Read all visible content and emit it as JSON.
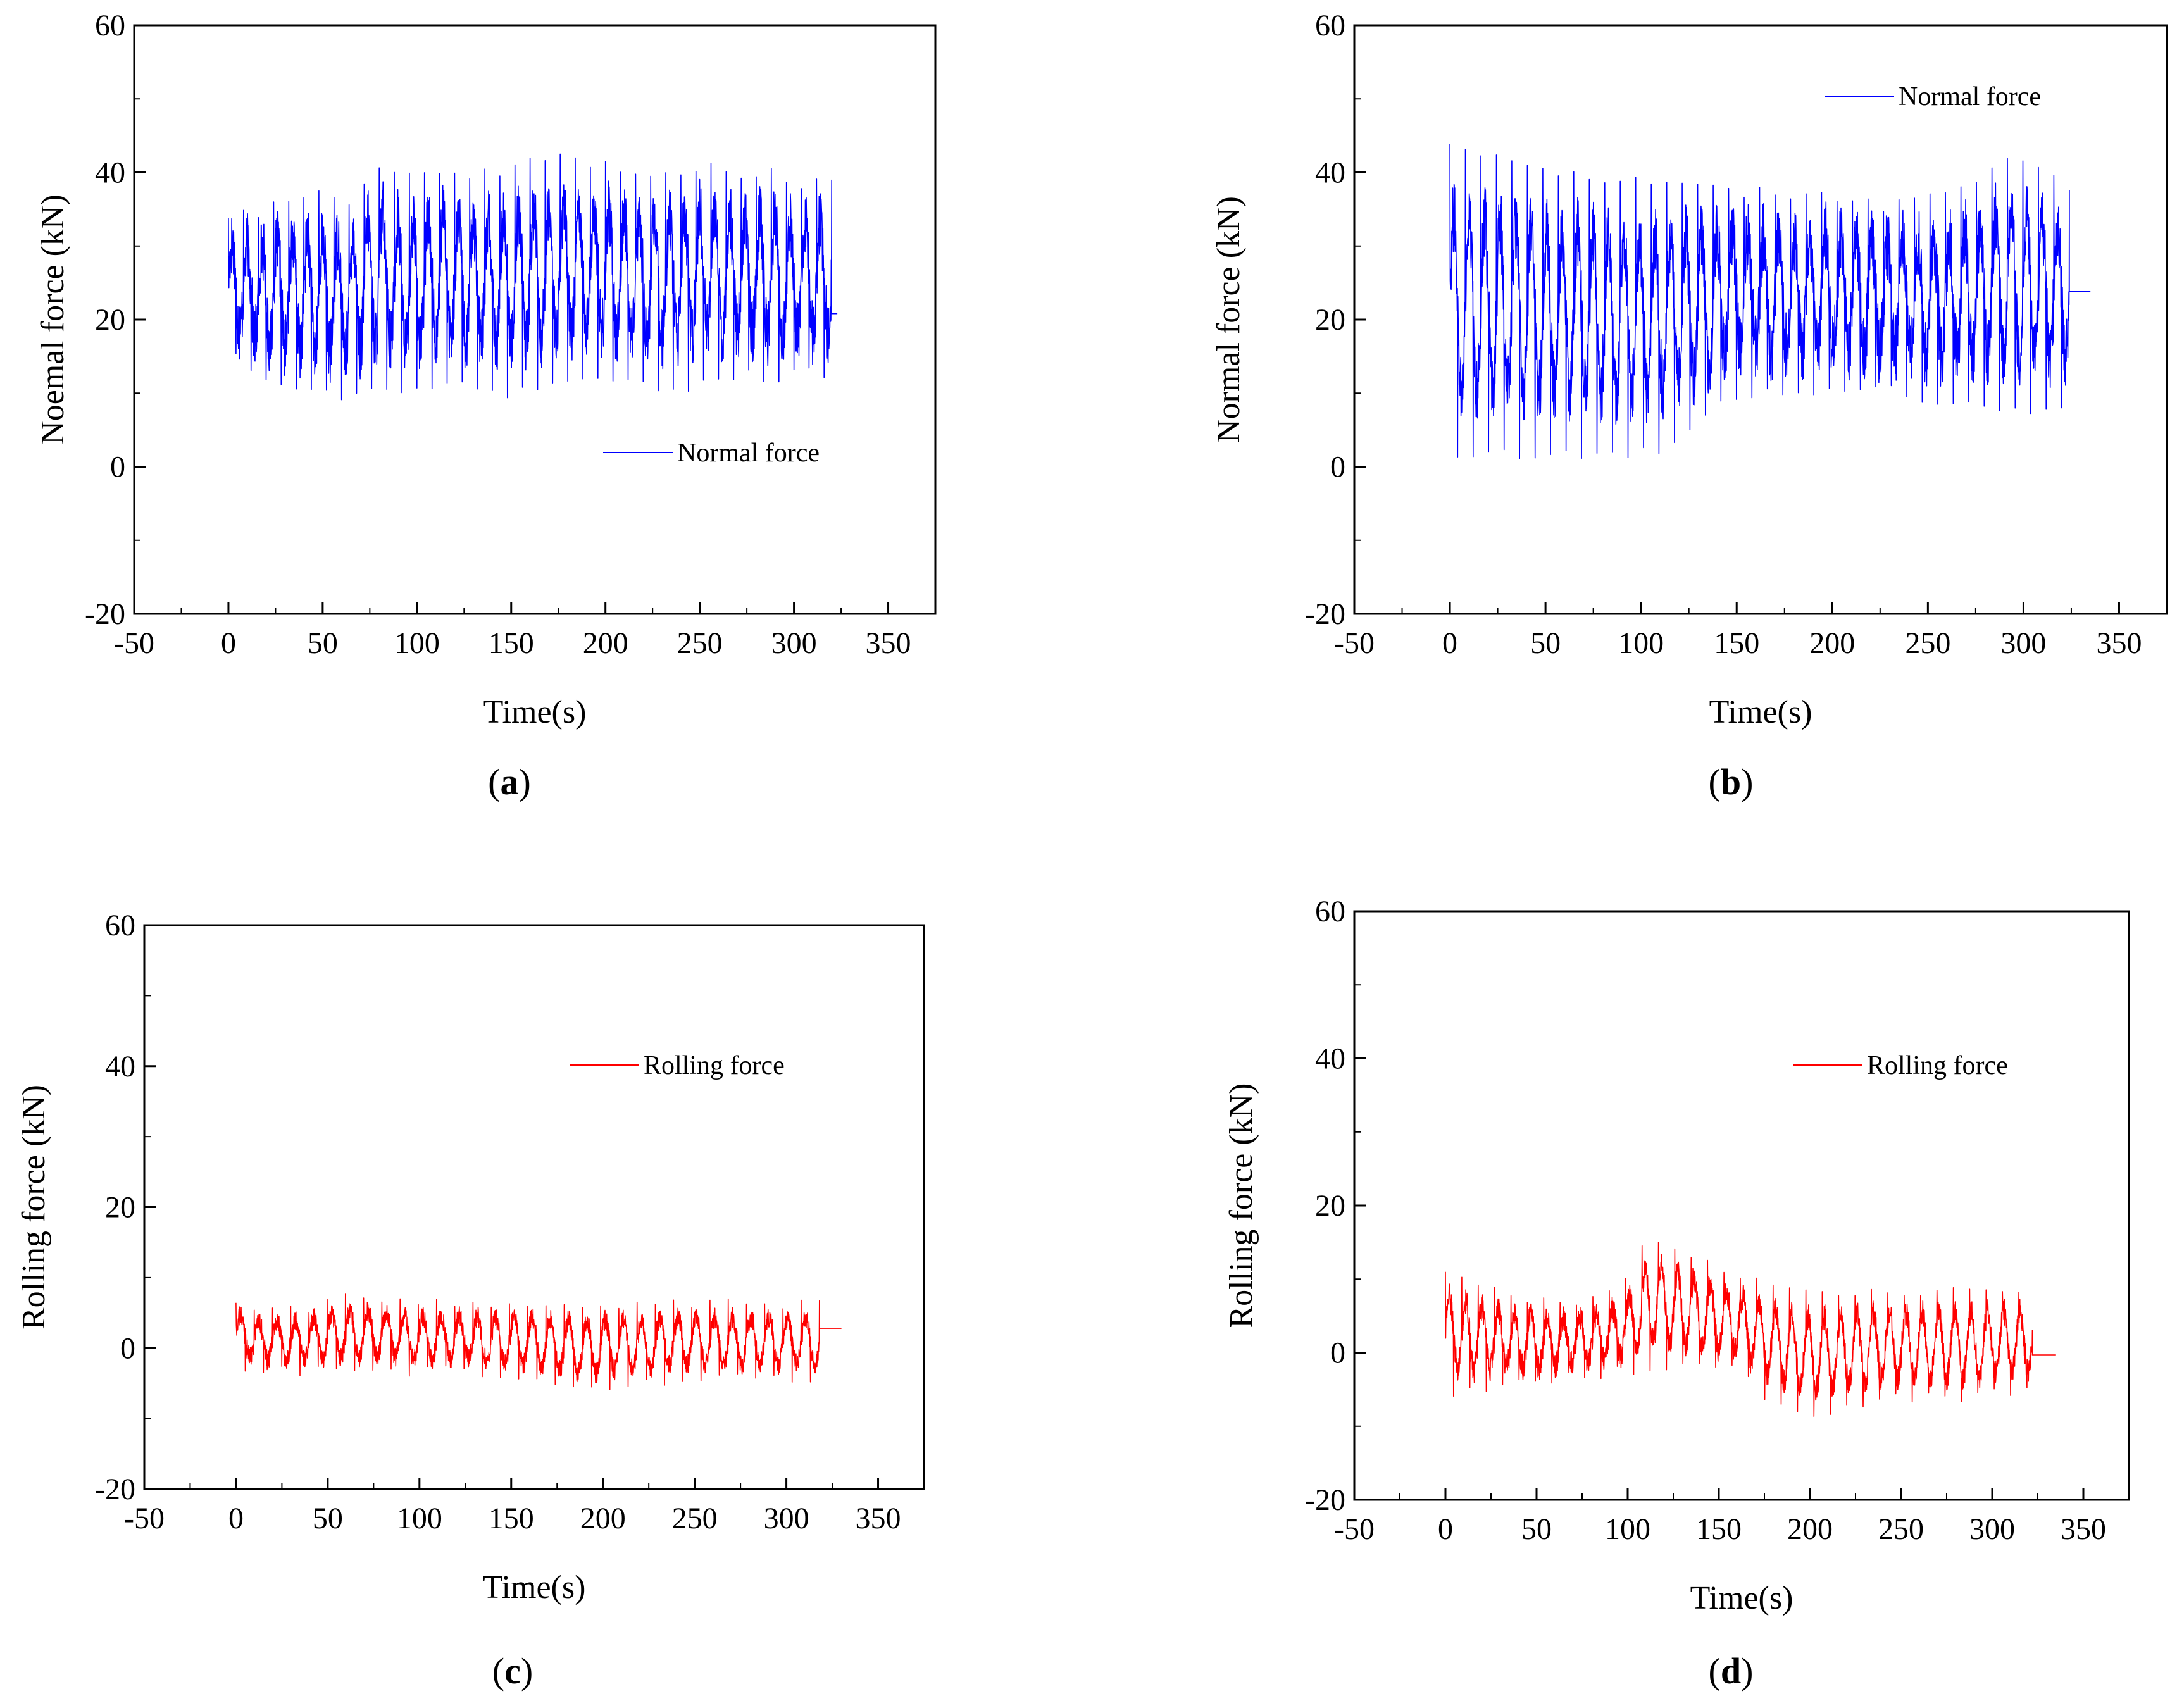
{
  "chart_data": [
    {
      "id": "a",
      "type": "line",
      "panel_label": {
        "open": "(",
        "letter": "a",
        "close": ")"
      },
      "xlabel": "Time(s)",
      "ylabel": "Noemal force (kN)",
      "xlim": [
        -50,
        375
      ],
      "ylim": [
        -20,
        60
      ],
      "xticks": [
        -50,
        0,
        50,
        100,
        150,
        200,
        250,
        300,
        350
      ],
      "yticks": [
        -20,
        0,
        20,
        40,
        60
      ],
      "legend": {
        "label": "Normal force",
        "position": "lower-right"
      },
      "series": [
        {
          "name": "Normal force",
          "color": "#0000ff",
          "t_start": 0,
          "t_end": 320,
          "t_tail_end": 323,
          "tail_value": 20.8,
          "cycles": 40,
          "base": 23,
          "amp": 6.5,
          "noise": 5.5,
          "peaks": [
            35,
            35,
            37,
            38,
            37,
            42,
            40,
            41,
            40,
            41,
            42,
            43,
            42,
            41,
            40,
            41,
            42,
            40,
            41,
            39,
            40
          ],
          "troughs": [
            15,
            12,
            10,
            9,
            9,
            10,
            9,
            11,
            10,
            9,
            10,
            11,
            12,
            11,
            10,
            10,
            11,
            12,
            11,
            12,
            12
          ]
        }
      ]
    },
    {
      "id": "b",
      "type": "line",
      "panel_label": {
        "open": "(",
        "letter": "b",
        "close": ")"
      },
      "xlabel": "Time(s)",
      "ylabel": "Normal force (kN)",
      "xlim": [
        -50,
        375
      ],
      "ylim": [
        -20,
        60
      ],
      "xticks": [
        -50,
        0,
        50,
        100,
        150,
        200,
        250,
        300,
        350
      ],
      "yticks": [
        -20,
        0,
        20,
        40,
        60
      ],
      "legend": {
        "label": "Normal force",
        "position": "upper-right"
      },
      "series": [
        {
          "name": "Normal force",
          "color": "#0000ff",
          "t_start": 0,
          "t_end": 324,
          "t_tail_end": 335,
          "tail_value": 23.8,
          "cycles": 40,
          "base": 24,
          "amp": 7.5,
          "noise": 6.0,
          "peaks": [
            44,
            43,
            42,
            41,
            41,
            40,
            40,
            39,
            39,
            38,
            38,
            37,
            38,
            37,
            36,
            37,
            38,
            40,
            43,
            41,
            39
          ],
          "troughs": [
            1,
            1,
            1,
            1,
            1,
            1,
            1,
            2,
            5,
            9,
            9,
            10,
            9,
            10,
            10,
            9,
            8,
            8,
            7,
            7,
            7
          ]
        }
      ]
    },
    {
      "id": "c",
      "type": "line",
      "panel_label": {
        "open": "(",
        "letter": "c",
        "close": ")"
      },
      "xlabel": "Time(s)",
      "ylabel": "Rolling force (kN)",
      "xlim": [
        -50,
        375
      ],
      "ylim": [
        -20,
        60
      ],
      "xticks": [
        -50,
        0,
        50,
        100,
        150,
        200,
        250,
        300,
        350
      ],
      "yticks": [
        -20,
        0,
        20,
        40,
        60
      ],
      "legend": {
        "label": "Rolling force",
        "position": "upper-right"
      },
      "series": [
        {
          "name": "Rolling force",
          "color": "#ff0000",
          "t_start": 0,
          "t_end": 318,
          "t_tail_end": 330,
          "tail_value": 2.8,
          "cycles": 32,
          "base": 1.0,
          "amp": 3.0,
          "noise": 1.8,
          "peaks": [
            7,
            6,
            6,
            7,
            8,
            8,
            7,
            7,
            7,
            7,
            7,
            7,
            7,
            7,
            7,
            7,
            7,
            7,
            7,
            7,
            7
          ],
          "troughs": [
            -3,
            -4,
            -4,
            -4,
            -4,
            -4,
            -4,
            -4,
            -4,
            -5,
            -5,
            -6,
            -7,
            -6,
            -6,
            -5,
            -5,
            -5,
            -5,
            -5,
            -5
          ]
        }
      ]
    },
    {
      "id": "d",
      "type": "line",
      "panel_label": {
        "open": "(",
        "letter": "d",
        "close": ")"
      },
      "xlabel": "Time(s)",
      "ylabel": "Rolling force (kN)",
      "xlim": [
        -50,
        375
      ],
      "ylim": [
        -20,
        60
      ],
      "xticks": [
        -50,
        0,
        50,
        100,
        150,
        200,
        250,
        300,
        350
      ],
      "yticks": [
        -20,
        0,
        20,
        40,
        60
      ],
      "legend": {
        "label": "Rolling force",
        "position": "upper-right"
      },
      "series": [
        {
          "name": "Rolling force",
          "color": "#ff0000",
          "t_start": 0,
          "t_end": 322,
          "t_tail_end": 335,
          "tail_value": -0.3,
          "cycles": 36,
          "base": 1.0,
          "amp": 4.5,
          "noise": 2.2,
          "peaks": [
            12,
            10,
            9,
            8,
            7,
            8,
            9,
            17,
            15,
            13,
            11,
            10,
            9,
            9,
            9,
            9,
            9,
            9,
            9,
            9,
            9
          ],
          "troughs": [
            -6,
            -6,
            -5,
            -5,
            -4,
            -4,
            -3,
            -3,
            -3,
            -3,
            -3,
            -7,
            -9,
            -9,
            -8,
            -7,
            -7,
            -7,
            -7,
            -6,
            -6
          ]
        }
      ]
    }
  ]
}
